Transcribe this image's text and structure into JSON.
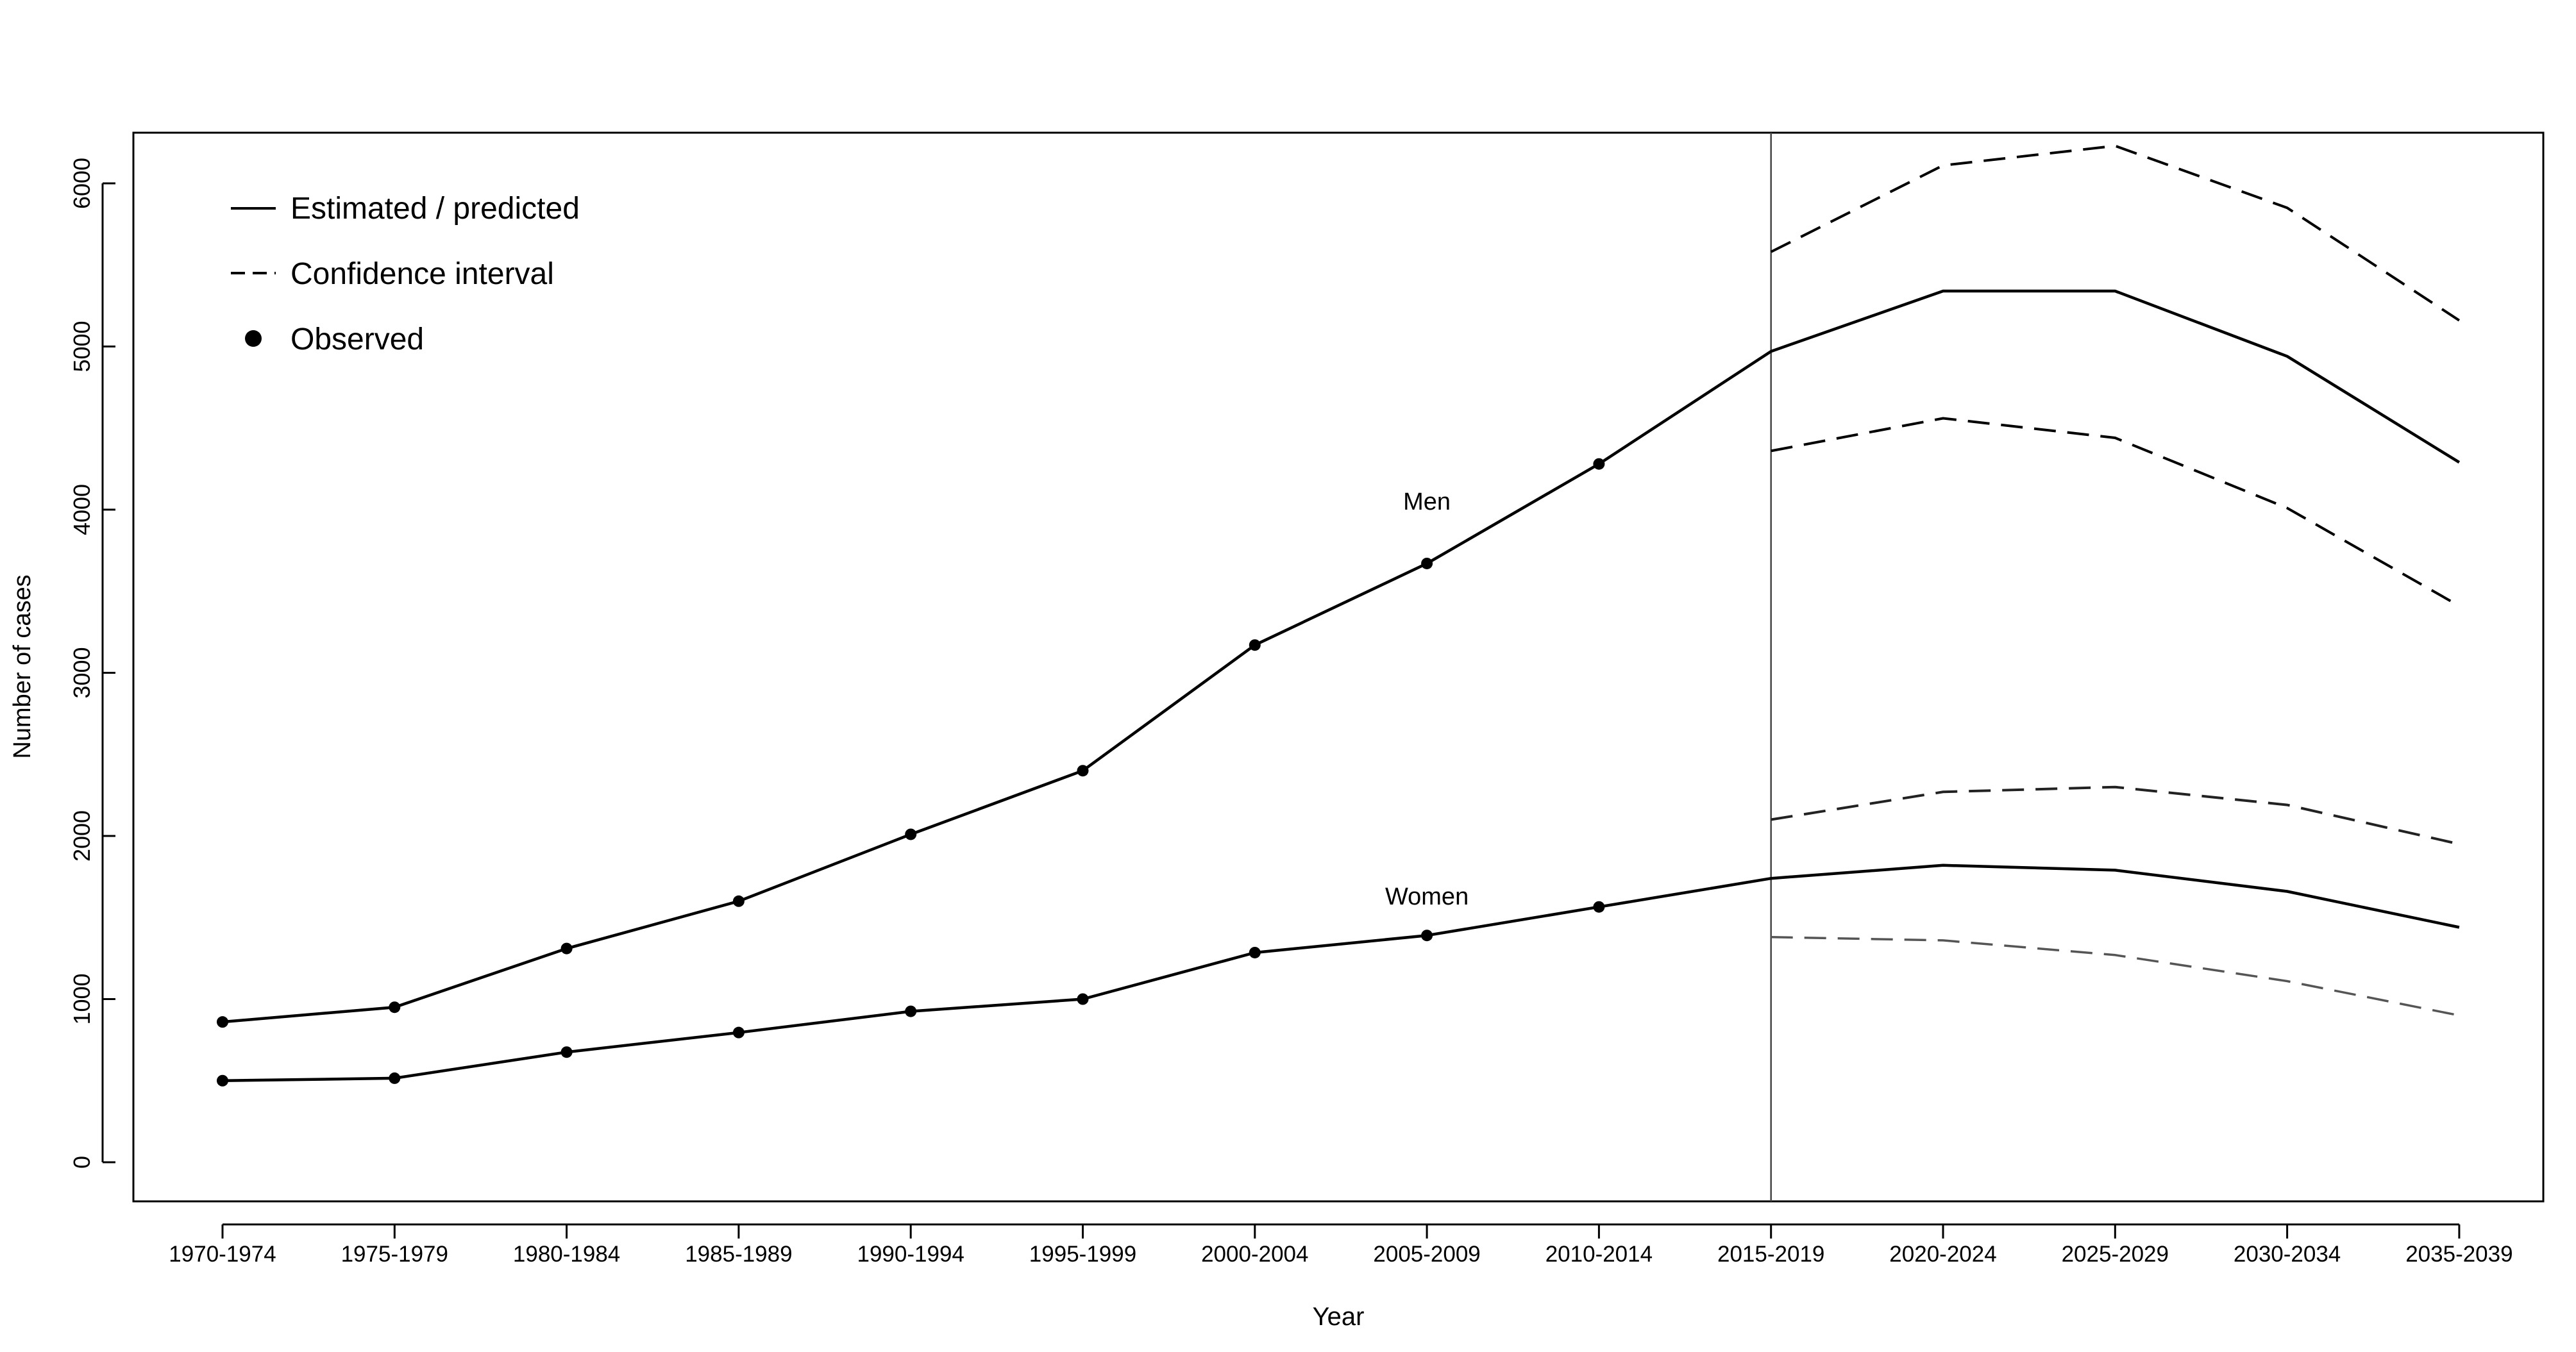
{
  "chart_data": {
    "type": "line",
    "title": "",
    "xlabel": "Year",
    "ylabel": "Number of cases",
    "categories": [
      "1970-1974",
      "1975-1979",
      "1980-1984",
      "1985-1989",
      "1990-1994",
      "1995-1999",
      "2000-2004",
      "2005-2009",
      "2010-2014",
      "2015-2019",
      "2020-2024",
      "2025-2029",
      "2030-2034",
      "2035-2039"
    ],
    "yticks": [
      0,
      1000,
      2000,
      3000,
      4000,
      5000,
      6000
    ],
    "ylim": [
      -250,
      6350
    ],
    "grid": false,
    "legend_position": "top-left",
    "legend": {
      "estimated": "Estimated / predicted",
      "ci": "Confidence interval",
      "observed": "Observed"
    },
    "divider_category": "2015-2019",
    "annotations": [
      {
        "text": "Men",
        "category": "2005-2009",
        "y": 4000
      },
      {
        "text": "Women",
        "category": "2005-2009",
        "y": 1580
      }
    ],
    "series": [
      {
        "name": "Men",
        "estimated": [
          860,
          950,
          1310,
          1600,
          2010,
          2400,
          3170,
          3670,
          4280,
          4970,
          5340,
          5340,
          4940,
          4290
        ],
        "observed": [
          860,
          950,
          1310,
          1600,
          2010,
          2400,
          3170,
          3670,
          4280
        ],
        "ci_upper": [
          null,
          null,
          null,
          null,
          null,
          null,
          null,
          null,
          null,
          5580,
          6110,
          6230,
          5850,
          5160
        ],
        "ci_lower": [
          null,
          null,
          null,
          null,
          null,
          null,
          null,
          null,
          null,
          4360,
          4560,
          4440,
          4010,
          3410
        ]
      },
      {
        "name": "Women",
        "estimated": [
          500,
          515,
          675,
          795,
          925,
          1000,
          1285,
          1390,
          1565,
          1740,
          1820,
          1790,
          1660,
          1440
        ],
        "observed": [
          500,
          515,
          675,
          795,
          925,
          1000,
          1285,
          1390,
          1565
        ],
        "ci_upper": [
          null,
          null,
          null,
          null,
          null,
          null,
          null,
          null,
          null,
          2100,
          2270,
          2300,
          2190,
          1950
        ],
        "ci_lower": [
          null,
          null,
          null,
          null,
          null,
          null,
          null,
          null,
          null,
          1380,
          1360,
          1270,
          1110,
          900
        ]
      }
    ]
  }
}
